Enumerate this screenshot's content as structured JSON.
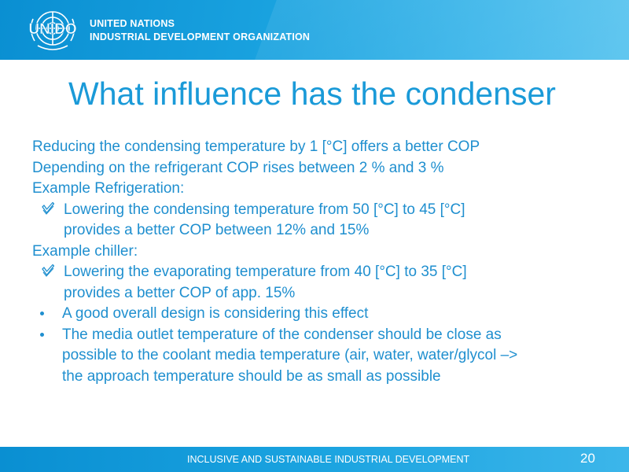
{
  "header": {
    "logo_text": "UNIDO",
    "org_line1": "UNITED NATIONS",
    "org_line2": "INDUSTRIAL DEVELOPMENT ORGANIZATION"
  },
  "slide": {
    "title": "What influence has the condenser",
    "intro": [
      "Reducing the condensing temperature by 1 [°C] offers a better COP",
      "Depending on the refrigerant COP rises between 2 % and 3 %",
      "Example Refrigeration:"
    ],
    "refrigeration_item": [
      "Lowering the condensing temperature from 50 [°C] to 45 [°C]",
      "provides a better COP between 12% and 15%"
    ],
    "chiller_label": "Example chiller:",
    "chiller_item": [
      "Lowering the evaporating temperature from 40 [°C] to 35 [°C]",
      "provides a better COP of app. 15%"
    ],
    "bullet1": "A good overall design is considering this effect",
    "bullet2": [
      "The media outlet temperature of the condenser should be close as",
      "possible to the coolant media temperature (air, water, water/glycol  –>",
      "the approach temperature should be as small as possible"
    ]
  },
  "footer": {
    "tagline": "INCLUSIVE AND SUSTAINABLE INDUSTRIAL DEVELOPMENT",
    "page_number": "20"
  },
  "colors": {
    "brand_blue": "#1a9ad8",
    "text_blue": "#1f8fcf",
    "header_gradient_start": "#0a8fd2",
    "header_gradient_end": "#5cc5ef"
  },
  "icons": [
    "unido-emblem-icon",
    "checkmark-bullet-icon",
    "dot-bullet-icon"
  ]
}
